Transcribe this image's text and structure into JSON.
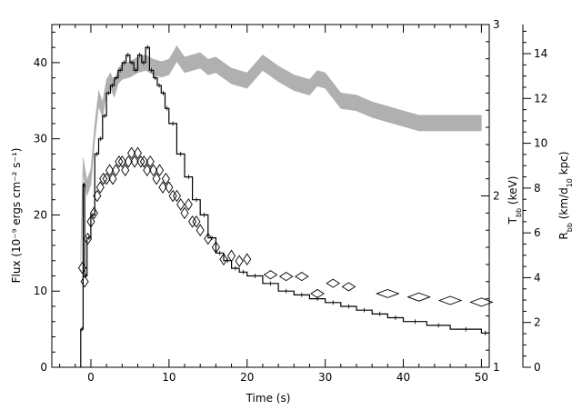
{
  "chart_data": {
    "type": "line",
    "xlabel": "Time (s)",
    "ylabel_left": "Flux (10⁻⁹ ergs cm⁻² s⁻¹)",
    "ylabel_mid": "T_bb (keV)",
    "ylabel_right": "R_bb (km/d_10 kpc)",
    "xlim": [
      -5,
      51
    ],
    "ylim_left": [
      0,
      45
    ],
    "ylim_mid": [
      1,
      3
    ],
    "ylim_right": [
      0,
      15.3
    ],
    "x_ticks": [
      0,
      10,
      20,
      30,
      40,
      50
    ],
    "y_left_ticks": [
      0,
      10,
      20,
      30,
      40
    ],
    "y_mid_ticks": [
      1,
      2,
      3
    ],
    "y_right_ticks": [
      0,
      2,
      4,
      6,
      8,
      10,
      12,
      14
    ],
    "grid": false,
    "series": [
      {
        "name": "",
        "style": "histogram",
        "color": "#000000",
        "x": [
          -1.3,
          -1.0,
          -0.8,
          -0.5,
          0,
          0.5,
          1,
          1.5,
          2,
          2.5,
          3,
          3.5,
          4,
          4.5,
          5,
          5.5,
          6,
          6.5,
          7,
          7.5,
          8,
          8.5,
          9,
          9.5,
          10,
          11,
          12,
          13,
          14,
          15,
          16,
          17,
          18,
          19,
          20,
          22,
          24,
          26,
          28,
          30,
          32,
          34,
          36,
          38,
          40,
          43,
          46,
          50
        ],
        "values": [
          5,
          24,
          12,
          17,
          20,
          28,
          30,
          33,
          36,
          37,
          38,
          39,
          40,
          41,
          40,
          39,
          41,
          40,
          42,
          39,
          38,
          37,
          36,
          34,
          32,
          28,
          25,
          22,
          20,
          17,
          15,
          14,
          13,
          12.5,
          12,
          11,
          10,
          9.5,
          9,
          8.5,
          8,
          7.5,
          7,
          6.5,
          6,
          5.5,
          5,
          4.5
        ]
      },
      {
        "name": "",
        "style": "diamonds",
        "color": "#000000",
        "x": [
          -1.1,
          -0.8,
          -0.4,
          0,
          0.4,
          0.8,
          1.2,
          1.6,
          2,
          2.4,
          2.8,
          3.2,
          3.6,
          4,
          4.4,
          4.8,
          5.2,
          5.6,
          6,
          6.4,
          6.8,
          7.2,
          7.6,
          8,
          8.4,
          8.8,
          9.2,
          9.6,
          10,
          10.5,
          11,
          11.5,
          12,
          12.5,
          13,
          13.5,
          14,
          15,
          16,
          17,
          18,
          19,
          20,
          23,
          25,
          27,
          29,
          31,
          33,
          38,
          42,
          46,
          50
        ],
        "values": [
          1.58,
          1.5,
          1.75,
          1.85,
          1.9,
          2.0,
          2.05,
          2.1,
          2.1,
          2.15,
          2.1,
          2.15,
          2.2,
          2.2,
          2.15,
          2.2,
          2.25,
          2.2,
          2.25,
          2.2,
          2.2,
          2.15,
          2.2,
          2.15,
          2.1,
          2.15,
          2.05,
          2.1,
          2.05,
          2.0,
          2.0,
          1.95,
          1.9,
          1.95,
          1.85,
          1.85,
          1.8,
          1.75,
          1.7,
          1.63,
          1.65,
          1.62,
          1.63,
          1.54,
          1.53,
          1.53,
          1.43,
          1.49,
          1.47,
          1.43,
          1.41,
          1.39,
          1.38
        ]
      },
      {
        "name": "",
        "style": "band",
        "color": "#b0b0b0",
        "x": [
          -1.3,
          -1.0,
          -0.5,
          0,
          0.5,
          1,
          1.5,
          2,
          2.5,
          3,
          3.5,
          4,
          5,
          6,
          7,
          8,
          9,
          10,
          11,
          12,
          13,
          14,
          15,
          16,
          18,
          20,
          22,
          24,
          26,
          28,
          29,
          30,
          32,
          34,
          36,
          38,
          40,
          42,
          44,
          46,
          48,
          50
        ],
        "values": [
          5,
          9,
          8,
          8.5,
          10.5,
          12,
          11.5,
          12.5,
          12.8,
          12.4,
          13,
          13.2,
          13.3,
          13.5,
          13.6,
          13.4,
          13.3,
          13.4,
          14.0,
          13.5,
          13.6,
          13.7,
          13.4,
          13.5,
          13.0,
          12.8,
          13.6,
          13.1,
          12.7,
          12.5,
          12.9,
          12.8,
          11.9,
          11.8,
          11.5,
          11.3,
          11.1,
          10.9,
          10.9,
          10.9,
          10.9,
          10.9
        ],
        "half_width": 0.35
      }
    ]
  }
}
